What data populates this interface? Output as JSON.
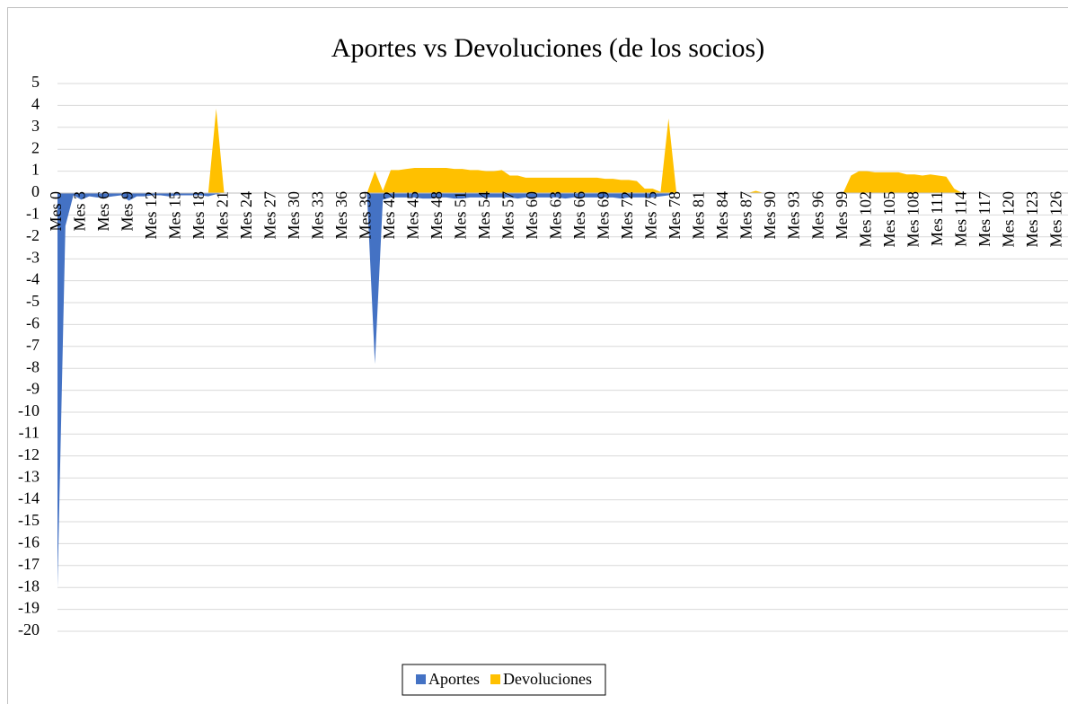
{
  "chart_data": {
    "type": "area",
    "title": "Aportes vs Devoluciones (de los socios)",
    "categories": [
      "Mes 0",
      null,
      null,
      "Mes 3",
      null,
      null,
      "Mes 6",
      null,
      null,
      "Mes 9",
      null,
      null,
      "Mes 12",
      null,
      null,
      "Mes 15",
      null,
      null,
      "Mes 18",
      null,
      null,
      "Mes 21",
      null,
      null,
      "Mes 24",
      null,
      null,
      "Mes 27",
      null,
      null,
      "Mes 30",
      null,
      null,
      "Mes 33",
      null,
      null,
      "Mes 36",
      null,
      null,
      "Mes 39",
      null,
      null,
      "Mes 42",
      null,
      null,
      "Mes 45",
      null,
      null,
      "Mes 48",
      null,
      null,
      "Mes 51",
      null,
      null,
      "Mes 54",
      null,
      null,
      "Mes 57",
      null,
      null,
      "Mes 60",
      null,
      null,
      "Mes 63",
      null,
      null,
      "Mes 66",
      null,
      null,
      "Mes 69",
      null,
      null,
      "Mes 72",
      null,
      null,
      "Mes 75",
      null,
      null,
      "Mes 78",
      null,
      null,
      "Mes 81",
      null,
      null,
      "Mes 84",
      null,
      null,
      "Mes 87",
      null,
      null,
      "Mes 90",
      null,
      null,
      "Mes 93",
      null,
      null,
      "Mes 96",
      null,
      null,
      "Mes 99",
      null,
      null,
      "Mes 102",
      null,
      null,
      "Mes 105",
      null,
      null,
      "Mes 108",
      null,
      null,
      "Mes 111",
      null,
      null,
      "Mes 114",
      null,
      null,
      "Mes 117",
      null,
      null,
      "Mes 120",
      null,
      null,
      "Mes 123",
      null,
      null,
      "Mes 126",
      null
    ],
    "series": [
      {
        "name": "Aportes",
        "color": "#4472c4",
        "values": [
          -18,
          -1.5,
          -0.1,
          -0.3,
          -0.15,
          -0.2,
          -0.2,
          -0.15,
          -0.1,
          -0.35,
          -0.15,
          -0.15,
          -0.1,
          -0.1,
          -0.15,
          -0.1,
          -0.1,
          -0.1,
          -0.1,
          -0.15,
          -0.05,
          0,
          0,
          0,
          0,
          0,
          0,
          0,
          0,
          0,
          0,
          0,
          0,
          0,
          0,
          0,
          0,
          0,
          0,
          0,
          -7.8,
          -0.3,
          -0.2,
          -0.2,
          -0.2,
          -0.2,
          -0.25,
          -0.25,
          -0.2,
          -0.2,
          -0.25,
          -0.25,
          -0.2,
          -0.2,
          -0.2,
          -0.2,
          -0.2,
          -0.2,
          -0.25,
          -0.2,
          -0.2,
          -0.2,
          -0.2,
          -0.2,
          -0.25,
          -0.2,
          -0.2,
          -0.2,
          -0.2,
          -0.2,
          -0.2,
          -0.25,
          -0.2,
          -0.2,
          -0.2,
          -0.2,
          -0.15,
          -0.1,
          0,
          0,
          0,
          0,
          0,
          0,
          0,
          0,
          0,
          0,
          0,
          0,
          0,
          0,
          0,
          0,
          0,
          0,
          0,
          0,
          0,
          0,
          0,
          0,
          0,
          0,
          0,
          0,
          0,
          0,
          0,
          0,
          0,
          0,
          0,
          0,
          0,
          0,
          0,
          0,
          0,
          0,
          0,
          0,
          0,
          0,
          0,
          0,
          0,
          0
        ]
      },
      {
        "name": "Devoluciones",
        "color": "#ffc000",
        "values": [
          0,
          0,
          0,
          0,
          0,
          0,
          0,
          0,
          0,
          0,
          0,
          0,
          0,
          0,
          0,
          0,
          0,
          0,
          0,
          0,
          3.85,
          0,
          0,
          0,
          0,
          0,
          0,
          0,
          0,
          0,
          0,
          0,
          0,
          0,
          0,
          0,
          0,
          0,
          0,
          0,
          1,
          0.1,
          1.05,
          1.05,
          1.1,
          1.15,
          1.15,
          1.15,
          1.15,
          1.15,
          1.1,
          1.1,
          1.05,
          1.05,
          1,
          1,
          1.05,
          0.8,
          0.8,
          0.7,
          0.7,
          0.7,
          0.7,
          0.7,
          0.7,
          0.7,
          0.7,
          0.7,
          0.7,
          0.65,
          0.65,
          0.6,
          0.6,
          0.55,
          0.2,
          0.2,
          0.05,
          3.4,
          0,
          0,
          0,
          0,
          0,
          0,
          0,
          0,
          0,
          0,
          0.1,
          0,
          0,
          0,
          0,
          0,
          0,
          0,
          0,
          0,
          0,
          0,
          0.8,
          1,
          1,
          0.95,
          0.95,
          0.95,
          0.95,
          0.85,
          0.85,
          0.8,
          0.85,
          0.8,
          0.75,
          0.2,
          0,
          0,
          0,
          0,
          0,
          0,
          0,
          0,
          0,
          0,
          0,
          0,
          0,
          0
        ]
      }
    ],
    "ylim": [
      -20,
      5
    ],
    "yticks": [
      5,
      4,
      3,
      2,
      1,
      0,
      -1,
      -2,
      -3,
      -4,
      -5,
      -6,
      -7,
      -8,
      -9,
      -10,
      -11,
      -12,
      -13,
      -14,
      -15,
      -16,
      -17,
      -18,
      -19,
      -20
    ],
    "grid": true,
    "legend": "bottom"
  }
}
